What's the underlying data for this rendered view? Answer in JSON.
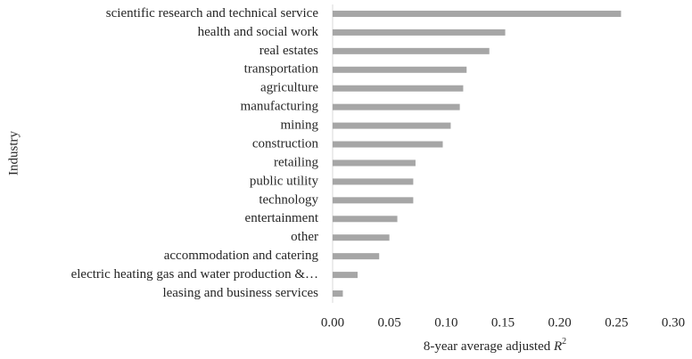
{
  "chart_data": {
    "type": "hbar",
    "y_label": "Industry",
    "x_label": "8-year average adjusted",
    "x_label_var": "R",
    "x_label_sup": "2",
    "color": "#a6a6a6",
    "categories": [
      "scientific research and technical service",
      "health and social work",
      "real estates",
      "transportation",
      "agriculture",
      "manufacturing",
      "mining",
      "construction",
      "retailing",
      "public utility",
      "technology",
      "entertainment",
      "other",
      "accommodation and catering",
      "electric heating gas and water production &…",
      "leasing and business services"
    ],
    "values": [
      0.254,
      0.152,
      0.138,
      0.118,
      0.115,
      0.112,
      0.104,
      0.097,
      0.073,
      0.071,
      0.071,
      0.057,
      0.05,
      0.041,
      0.022,
      0.009
    ],
    "xlim": [
      0,
      0.3
    ],
    "xticks": [
      {
        "value": 0,
        "label": "0.00"
      },
      {
        "value": 0.05,
        "label": "0.05"
      },
      {
        "value": 0.1,
        "label": "0.10"
      },
      {
        "value": 0.15,
        "label": "0.15"
      },
      {
        "value": 0.2,
        "label": "0.20"
      },
      {
        "value": 0.25,
        "label": "0.25"
      },
      {
        "value": 0.3,
        "label": "0.30"
      }
    ]
  }
}
